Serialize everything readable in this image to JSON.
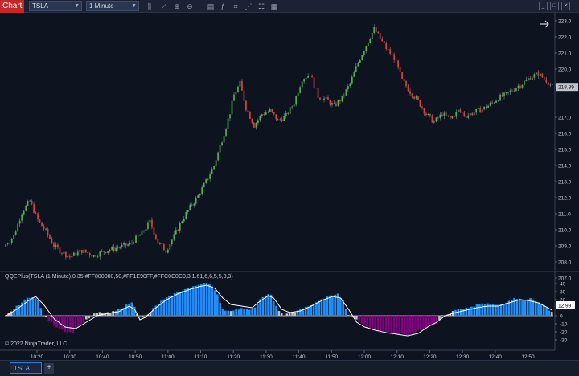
{
  "toolbar": {
    "title": "Chart",
    "instrument": "TSLA",
    "interval": "1 Minute",
    "icons": [
      "bars-icon",
      "draw-line-icon",
      "zoom-in-icon",
      "zoom-out-icon",
      "data-box-icon",
      "indicators-icon",
      "templates-icon",
      "strategies-icon",
      "properties-icon",
      "calendar-icon"
    ],
    "window_buttons": [
      "_",
      "□",
      "✕"
    ]
  },
  "tabs": {
    "active": "TSLA",
    "add": "+"
  },
  "copyright": "© 2022 NinjaTrader, LLC",
  "indicator_label": "QQEPlus(TSLA (1 Minute),0.35,#FF800080,50,#FF1E90FF,#FFC0C0C0,3,1.61,6,6,5,5,3,3)",
  "colors": {
    "background": "#0d131f",
    "up_candle": "#4caf50",
    "down_candle": "#e53935",
    "hist_blue": "#1e90ff",
    "hist_purple": "#800080",
    "hist_gray": "#c0c0c0",
    "qqe_line": "#ffffff",
    "price_marker": "#c0c4cc"
  },
  "chart_data": [
    {
      "type": "candlestick",
      "title": "",
      "instrument": "TSLA",
      "interval": "1 Minute",
      "ylim": [
        207.5,
        223.2
      ],
      "y_ticks": [
        "223.0",
        "222.0",
        "221.0",
        "220.0",
        "219.0",
        "218.89",
        "217.0",
        "216.0",
        "215.0",
        "214.0",
        "213.0",
        "212.0",
        "211.0",
        "210.0",
        "209.0",
        "208.0",
        "207.0"
      ],
      "x_ticks": [
        "10:20",
        "10:30",
        "10:40",
        "10:50",
        "11:00",
        "11:10",
        "11:20",
        "11:30",
        "11:40",
        "11:50",
        "12:00",
        "12:10",
        "12:20",
        "12:30",
        "12:40",
        "12:50"
      ],
      "last_price": "218.89",
      "close_key": [
        [
          0,
          209.1
        ],
        [
          4,
          209.6
        ],
        [
          8,
          211.1
        ],
        [
          12,
          211.8
        ],
        [
          16,
          210.6
        ],
        [
          20,
          209.9
        ],
        [
          24,
          209.0
        ],
        [
          28,
          208.6
        ],
        [
          32,
          208.3
        ],
        [
          38,
          208.7
        ],
        [
          44,
          208.4
        ],
        [
          50,
          208.7
        ],
        [
          56,
          208.9
        ],
        [
          62,
          209.1
        ],
        [
          68,
          209.8
        ],
        [
          72,
          210.5
        ],
        [
          76,
          209.2
        ],
        [
          80,
          208.7
        ],
        [
          84,
          209.6
        ],
        [
          88,
          210.6
        ],
        [
          92,
          211.4
        ],
        [
          96,
          212.1
        ],
        [
          100,
          213.0
        ],
        [
          104,
          214.0
        ],
        [
          108,
          215.6
        ],
        [
          112,
          217.3
        ],
        [
          114,
          218.4
        ],
        [
          117,
          219.1
        ],
        [
          120,
          217.6
        ],
        [
          124,
          216.5
        ],
        [
          128,
          217.2
        ],
        [
          132,
          217.4
        ],
        [
          136,
          216.8
        ],
        [
          140,
          217.1
        ],
        [
          144,
          217.9
        ],
        [
          148,
          219.4
        ],
        [
          152,
          219.7
        ],
        [
          156,
          218.3
        ],
        [
          160,
          218.1
        ],
        [
          164,
          217.7
        ],
        [
          168,
          218.2
        ],
        [
          172,
          219.1
        ],
        [
          176,
          220.4
        ],
        [
          180,
          221.5
        ],
        [
          184,
          222.5
        ],
        [
          186,
          222.1
        ],
        [
          190,
          221.3
        ],
        [
          194,
          220.7
        ],
        [
          198,
          219.3
        ],
        [
          202,
          218.6
        ],
        [
          206,
          218.0
        ],
        [
          210,
          217.2
        ],
        [
          214,
          216.7
        ],
        [
          218,
          217.2
        ],
        [
          222,
          216.9
        ],
        [
          226,
          217.4
        ],
        [
          230,
          217.1
        ],
        [
          234,
          217.3
        ],
        [
          238,
          217.5
        ],
        [
          242,
          217.8
        ],
        [
          246,
          218.2
        ],
        [
          250,
          218.4
        ],
        [
          254,
          218.8
        ],
        [
          258,
          219.1
        ],
        [
          262,
          219.5
        ],
        [
          266,
          219.7
        ],
        [
          270,
          219.3
        ],
        [
          273,
          218.89
        ]
      ]
    },
    {
      "type": "bar",
      "title": "QQEPlus",
      "ylim": [
        -33,
        45
      ],
      "y_ticks": [
        "40",
        "30",
        "20",
        "12.99",
        "0",
        "-10",
        "-20",
        "-30"
      ],
      "last_value": "12.99",
      "hist_key": [
        [
          0,
          0
        ],
        [
          2,
          6
        ],
        [
          5,
          14
        ],
        [
          8,
          22
        ],
        [
          10,
          24
        ],
        [
          12,
          19
        ],
        [
          14,
          0
        ],
        [
          16,
          -6
        ],
        [
          19,
          -14
        ],
        [
          23,
          -21
        ],
        [
          25,
          -20
        ],
        [
          27,
          -14
        ],
        [
          29,
          -8
        ],
        [
          31,
          -3
        ],
        [
          33,
          2
        ],
        [
          35,
          4
        ],
        [
          37,
          3
        ],
        [
          39,
          4
        ],
        [
          41,
          6
        ],
        [
          43,
          9
        ],
        [
          45,
          13
        ],
        [
          47,
          16
        ],
        [
          48,
          12
        ],
        [
          49,
          3
        ],
        [
          51,
          -2
        ],
        [
          53,
          1
        ],
        [
          55,
          9
        ],
        [
          58,
          18
        ],
        [
          62,
          26
        ],
        [
          66,
          32
        ],
        [
          70,
          36
        ],
        [
          73,
          40
        ],
        [
          75,
          42
        ],
        [
          77,
          36
        ],
        [
          79,
          26
        ],
        [
          81,
          8
        ],
        [
          83,
          6
        ],
        [
          86,
          8
        ],
        [
          89,
          9
        ],
        [
          91,
          8
        ],
        [
          93,
          10
        ],
        [
          95,
          20
        ],
        [
          97,
          25
        ],
        [
          99,
          27
        ],
        [
          100,
          18
        ],
        [
          102,
          5
        ],
        [
          104,
          1
        ],
        [
          106,
          3
        ],
        [
          108,
          5
        ],
        [
          110,
          9
        ],
        [
          113,
          11
        ],
        [
          116,
          16
        ],
        [
          119,
          22
        ],
        [
          122,
          26
        ],
        [
          124,
          27
        ],
        [
          126,
          18
        ],
        [
          128,
          0
        ],
        [
          130,
          -2
        ],
        [
          133,
          -10
        ],
        [
          136,
          -16
        ],
        [
          140,
          -19
        ],
        [
          145,
          -22
        ],
        [
          150,
          -23
        ],
        [
          153,
          -20
        ],
        [
          156,
          -16
        ],
        [
          159,
          -12
        ],
        [
          161,
          -9
        ],
        [
          163,
          0
        ],
        [
          165,
          1
        ],
        [
          168,
          7
        ],
        [
          171,
          8
        ],
        [
          174,
          11
        ],
        [
          177,
          14
        ],
        [
          180,
          15
        ],
        [
          183,
          13
        ],
        [
          186,
          15
        ],
        [
          189,
          21
        ],
        [
          192,
          22
        ],
        [
          194,
          18
        ],
        [
          196,
          22
        ],
        [
          199,
          17
        ],
        [
          202,
          10
        ],
        [
          204,
          5
        ]
      ],
      "line_key": [
        [
          0,
          0
        ],
        [
          4,
          8
        ],
        [
          8,
          18
        ],
        [
          11,
          24
        ],
        [
          14,
          14
        ],
        [
          18,
          -4
        ],
        [
          22,
          -14
        ],
        [
          26,
          -16
        ],
        [
          30,
          -8
        ],
        [
          34,
          0
        ],
        [
          38,
          3
        ],
        [
          42,
          5
        ],
        [
          46,
          12
        ],
        [
          48,
          8
        ],
        [
          50,
          -5
        ],
        [
          52,
          -2
        ],
        [
          56,
          10
        ],
        [
          60,
          20
        ],
        [
          64,
          27
        ],
        [
          68,
          32
        ],
        [
          72,
          36
        ],
        [
          75,
          38
        ],
        [
          78,
          34
        ],
        [
          81,
          22
        ],
        [
          84,
          14
        ],
        [
          88,
          12
        ],
        [
          92,
          10
        ],
        [
          94,
          16
        ],
        [
          98,
          25
        ],
        [
          100,
          22
        ],
        [
          103,
          8
        ],
        [
          106,
          4
        ],
        [
          110,
          6
        ],
        [
          114,
          12
        ],
        [
          118,
          19
        ],
        [
          122,
          24
        ],
        [
          125,
          22
        ],
        [
          128,
          8
        ],
        [
          131,
          -8
        ],
        [
          134,
          -14
        ],
        [
          138,
          -18
        ],
        [
          142,
          -21
        ],
        [
          146,
          -23
        ],
        [
          150,
          -25
        ],
        [
          154,
          -22
        ],
        [
          158,
          -13
        ],
        [
          161,
          -8
        ],
        [
          164,
          0
        ],
        [
          168,
          4
        ],
        [
          172,
          7
        ],
        [
          176,
          10
        ],
        [
          180,
          12
        ],
        [
          184,
          12
        ],
        [
          188,
          16
        ],
        [
          192,
          20
        ],
        [
          195,
          19
        ],
        [
          199,
          16
        ],
        [
          203,
          9
        ],
        [
          204,
          7
        ]
      ]
    }
  ]
}
